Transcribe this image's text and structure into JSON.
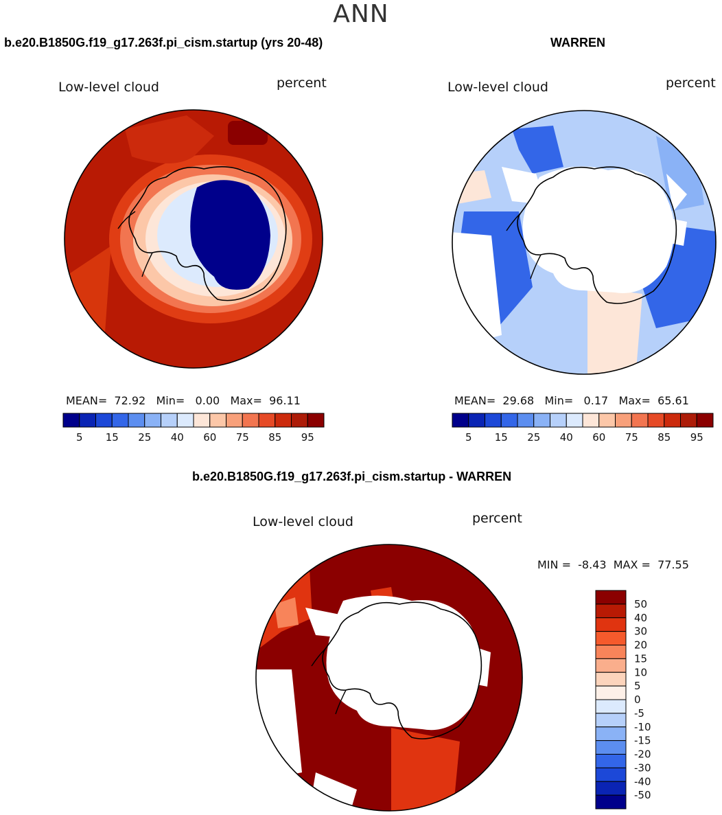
{
  "season": "ANN",
  "panels": {
    "model": {
      "case_title": "b.e20.B1850G.f19_g17.263f.pi_cism.startup (yrs 20-48)",
      "variable": "Low-level cloud",
      "units": "percent",
      "stats": {
        "mean_label": "MEAN=",
        "mean": "72.92",
        "min_label": "Min=",
        "min": "0.00",
        "max_label": "Max=",
        "max": "96.11"
      }
    },
    "obs": {
      "case_title": "WARREN",
      "variable": "Low-level cloud",
      "units": "percent",
      "stats": {
        "mean_label": "MEAN=",
        "mean": "29.68",
        "min_label": "Min=",
        "min": "0.17",
        "max_label": "Max=",
        "max": "65.61"
      }
    },
    "diff": {
      "case_title": "b.e20.B1850G.f19_g17.263f.pi_cism.startup - WARREN",
      "variable": "Low-level cloud",
      "units": "percent",
      "stats": {
        "min_label": "MIN =",
        "min": "-8.43",
        "max_label": "MAX =",
        "max": "77.55"
      }
    }
  },
  "chart_data": [
    {
      "type": "heatmap",
      "projection": "south-polar-stereographic",
      "title": "Low-level cloud",
      "units": "percent",
      "colorbar": {
        "orientation": "horizontal",
        "colors": [
          "#00008b",
          "#0a24b4",
          "#1c48d8",
          "#3366e8",
          "#5c8ef0",
          "#8ab2f6",
          "#b6d0fa",
          "#dceafd",
          "#fde6d8",
          "#fcc7a8",
          "#f8a07a",
          "#f27550",
          "#e64a26",
          "#cc2a0c",
          "#ad1c08",
          "#8b0000"
        ],
        "tick_labels": [
          "5",
          "15",
          "25",
          "40",
          "60",
          "75",
          "85",
          "95"
        ]
      },
      "stats": {
        "mean": 72.92,
        "min": 0.0,
        "max": 96.11
      }
    },
    {
      "type": "heatmap",
      "projection": "south-polar-stereographic",
      "title": "Low-level cloud",
      "units": "percent",
      "colorbar": {
        "orientation": "horizontal",
        "colors": [
          "#00008b",
          "#0a24b4",
          "#1c48d8",
          "#3366e8",
          "#5c8ef0",
          "#8ab2f6",
          "#b6d0fa",
          "#dceafd",
          "#fde6d8",
          "#fcc7a8",
          "#f8a07a",
          "#f27550",
          "#e64a26",
          "#cc2a0c",
          "#ad1c08",
          "#8b0000"
        ],
        "tick_labels": [
          "5",
          "15",
          "25",
          "40",
          "60",
          "75",
          "85",
          "95"
        ]
      },
      "stats": {
        "mean": 29.68,
        "min": 0.17,
        "max": 65.61
      }
    },
    {
      "type": "heatmap",
      "projection": "south-polar-stereographic",
      "title": "Low-level cloud",
      "units": "percent",
      "colorbar": {
        "orientation": "vertical",
        "colors": [
          "#8b0000",
          "#b81a04",
          "#e03410",
          "#f55a2c",
          "#f8845a",
          "#faae8c",
          "#fcd4bc",
          "#fdf0e8",
          "#dceafd",
          "#b6d0fa",
          "#8ab2f6",
          "#5c8ef0",
          "#3366e8",
          "#1c48d8",
          "#0a24b4",
          "#00008b"
        ],
        "tick_labels": [
          "50",
          "40",
          "30",
          "20",
          "15",
          "10",
          "5",
          "0",
          "-5",
          "-10",
          "-15",
          "-20",
          "-30",
          "-40",
          "-50"
        ]
      },
      "stats": {
        "min": -8.43,
        "max": 77.55
      }
    }
  ]
}
